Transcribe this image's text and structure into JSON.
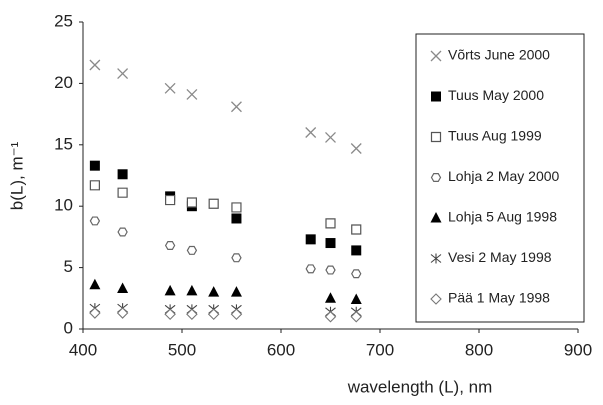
{
  "chart_data": {
    "type": "scatter",
    "xlabel": "wavelength (L), nm",
    "ylabel": "b(L), m⁻¹",
    "xlim": [
      400,
      900
    ],
    "xticks": [
      400,
      500,
      600,
      700,
      800,
      900
    ],
    "ylim": [
      0,
      25
    ],
    "yticks": [
      0,
      5,
      10,
      15,
      20,
      25
    ],
    "grid": false,
    "legend": "right",
    "series": [
      {
        "name": "Võrts June 2000",
        "marker": "cross",
        "color": "#8a8a8a",
        "x": [
          412,
          440,
          488,
          510,
          555,
          630,
          650,
          676
        ],
        "values": [
          21.5,
          20.8,
          19.6,
          19.1,
          18.1,
          16.0,
          15.6,
          14.7
        ]
      },
      {
        "name": "Tuus May 2000",
        "marker": "square-filled",
        "color": "#000000",
        "x": [
          412,
          440,
          488,
          510,
          555,
          630,
          650,
          676
        ],
        "values": [
          13.3,
          12.6,
          10.8,
          10.0,
          9.0,
          7.3,
          7.0,
          6.4
        ]
      },
      {
        "name": "Tuus Aug 1999",
        "marker": "square-open",
        "color": "#555555",
        "x": [
          412,
          440,
          488,
          510,
          532,
          555,
          650,
          676
        ],
        "values": [
          11.7,
          11.1,
          10.5,
          10.3,
          10.2,
          9.9,
          8.6,
          8.1
        ]
      },
      {
        "name": "Lohja 2 May 2000",
        "marker": "hexagon-open",
        "color": "#666666",
        "x": [
          412,
          440,
          488,
          510,
          555,
          630,
          650,
          676
        ],
        "values": [
          8.8,
          7.9,
          6.8,
          6.4,
          5.8,
          4.9,
          4.8,
          4.5
        ]
      },
      {
        "name": "Lohja 5 Aug 1998",
        "marker": "triangle-filled",
        "color": "#000000",
        "x": [
          412,
          440,
          488,
          510,
          532,
          555,
          650,
          676
        ],
        "values": [
          3.6,
          3.3,
          3.1,
          3.1,
          3.0,
          3.0,
          2.5,
          2.4
        ]
      },
      {
        "name": "Vesi 2 May 1998",
        "marker": "asterisk",
        "color": "#444444",
        "x": [
          412,
          440,
          488,
          510,
          532,
          555,
          650,
          676
        ],
        "values": [
          1.7,
          1.7,
          1.6,
          1.6,
          1.6,
          1.6,
          1.4,
          1.4
        ]
      },
      {
        "name": "Pää 1 May 1998",
        "marker": "diamond-open",
        "color": "#777777",
        "x": [
          412,
          440,
          488,
          510,
          532,
          555,
          650,
          676
        ],
        "values": [
          1.3,
          1.3,
          1.2,
          1.2,
          1.2,
          1.2,
          1.0,
          1.0
        ]
      }
    ]
  }
}
